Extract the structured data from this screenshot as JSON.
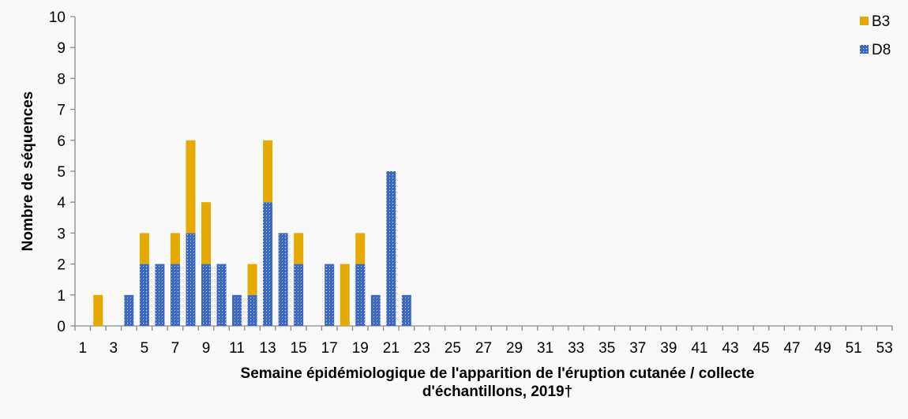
{
  "chart_data": {
    "type": "bar",
    "stacked": true,
    "title": "",
    "xlabel": "Semaine épidémiologique de l'apparition de l'éruption cutanée / collecte d'échantillons, 2019†",
    "xlabel_lines": [
      "Semaine épidémiologique de l'apparition de l'éruption cutanée / collecte",
      "d'échantillons, 2019†"
    ],
    "ylabel": "Nombre de séquences",
    "ylim": [
      0,
      10
    ],
    "yticks": [
      0,
      1,
      2,
      3,
      4,
      5,
      6,
      7,
      8,
      9,
      10
    ],
    "xtick_labels": [
      "1",
      "3",
      "5",
      "7",
      "9",
      "11",
      "13",
      "15",
      "17",
      "19",
      "21",
      "23",
      "25",
      "27",
      "29",
      "31",
      "33",
      "35",
      "37",
      "39",
      "41",
      "43",
      "45",
      "47",
      "49",
      "51",
      "53"
    ],
    "categories": [
      1,
      2,
      3,
      4,
      5,
      6,
      7,
      8,
      9,
      10,
      11,
      12,
      13,
      14,
      15,
      16,
      17,
      18,
      19,
      20,
      21,
      22,
      23,
      24,
      25,
      26,
      27,
      28,
      29,
      30,
      31,
      32,
      33,
      34,
      35,
      36,
      37,
      38,
      39,
      40,
      41,
      42,
      43,
      44,
      45,
      46,
      47,
      48,
      49,
      50,
      51,
      52,
      53
    ],
    "series": [
      {
        "name": "D8",
        "color": "#3d69c0",
        "pattern": "dotted",
        "values": [
          0,
          0,
          0,
          1,
          2,
          2,
          2,
          3,
          2,
          2,
          1,
          1,
          4,
          3,
          2,
          0,
          2,
          0,
          2,
          1,
          5,
          1,
          0,
          0,
          0,
          0,
          0,
          0,
          0,
          0,
          0,
          0,
          0,
          0,
          0,
          0,
          0,
          0,
          0,
          0,
          0,
          0,
          0,
          0,
          0,
          0,
          0,
          0,
          0,
          0,
          0,
          0,
          0
        ]
      },
      {
        "name": "B3",
        "color": "#e5a900",
        "pattern": "solid",
        "values": [
          0,
          1,
          0,
          0,
          1,
          0,
          1,
          3,
          2,
          0,
          0,
          1,
          2,
          0,
          1,
          0,
          0,
          2,
          1,
          0,
          0,
          0,
          0,
          0,
          0,
          0,
          0,
          0,
          0,
          0,
          0,
          0,
          0,
          0,
          0,
          0,
          0,
          0,
          0,
          0,
          0,
          0,
          0,
          0,
          0,
          0,
          0,
          0,
          0,
          0,
          0,
          0,
          0
        ]
      }
    ],
    "legend": {
      "position": "top-right",
      "entries": [
        {
          "label": "B3",
          "color": "#e5a900"
        },
        {
          "label": "D8",
          "color": "#3d69c0"
        }
      ]
    },
    "grid": false
  }
}
